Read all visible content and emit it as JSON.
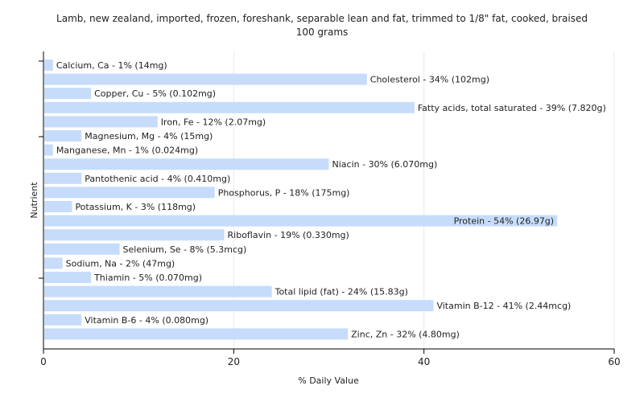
{
  "chart_data": {
    "type": "bar",
    "orientation": "horizontal",
    "title": "Lamb, new zealand, imported, frozen, foreshank, separable lean and fat, trimmed to 1/8\" fat, cooked, braised",
    "subtitle": "100 grams",
    "xlabel": "% Daily Value",
    "ylabel": "Nutrient",
    "xlim": [
      0,
      60
    ],
    "xticks": [
      "0",
      "20",
      "40",
      "60"
    ],
    "grid": true,
    "bar_color": "#c6dcfa",
    "categories": [
      "Calcium, Ca",
      "Cholesterol",
      "Copper, Cu",
      "Fatty acids, total saturated",
      "Iron, Fe",
      "Magnesium, Mg",
      "Manganese, Mn",
      "Niacin",
      "Pantothenic acid",
      "Phosphorus, P",
      "Potassium, K",
      "Protein",
      "Riboflavin",
      "Selenium, Se",
      "Sodium, Na",
      "Thiamin",
      "Total lipid (fat)",
      "Vitamin B-12",
      "Vitamin B-6",
      "Zinc, Zn"
    ],
    "values": [
      1,
      34,
      5,
      39,
      12,
      4,
      1,
      30,
      4,
      18,
      3,
      54,
      19,
      8,
      2,
      5,
      24,
      41,
      4,
      32
    ],
    "labels": [
      "Calcium, Ca - 1% (14mg)",
      "Cholesterol - 34% (102mg)",
      "Copper, Cu - 5% (0.102mg)",
      "Fatty acids, total saturated - 39% (7.820g)",
      "Iron, Fe - 12% (2.07mg)",
      "Magnesium, Mg - 4% (15mg)",
      "Manganese, Mn - 1% (0.024mg)",
      "Niacin - 30% (6.070mg)",
      "Pantothenic acid - 4% (0.410mg)",
      "Phosphorus, P - 18% (175mg)",
      "Potassium, K - 3% (118mg)",
      "Protein - 54% (26.97g)",
      "Riboflavin - 19% (0.330mg)",
      "Selenium, Se - 8% (5.3mcg)",
      "Sodium, Na - 2% (47mg)",
      "Thiamin - 5% (0.070mg)",
      "Total lipid (fat) - 24% (15.83g)",
      "Vitamin B-12 - 41% (2.44mcg)",
      "Vitamin B-6 - 4% (0.080mg)",
      "Zinc, Zn - 32% (4.80mg)"
    ],
    "inside_label_index": 11
  }
}
